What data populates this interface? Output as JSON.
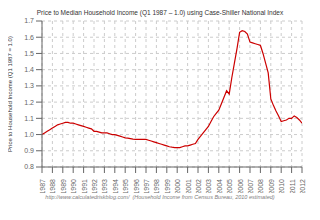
{
  "chart_data": {
    "type": "line",
    "title": "Price to Median Household Income (Q1 1987 – 1.0) using Case-Shiller National Index",
    "ylabel": "Price to Household Income (Q1 1987 = 1.0)",
    "annotations": [
      "http://www.calculatedriskblog.com/  (Household Income from Census Bureau, 2010 estimated)"
    ],
    "x": [
      1987.0,
      1987.25,
      1987.5,
      1987.75,
      1988.0,
      1988.25,
      1988.5,
      1988.75,
      1989.0,
      1989.25,
      1989.5,
      1989.75,
      1990.0,
      1990.25,
      1990.5,
      1990.75,
      1991.0,
      1991.25,
      1991.5,
      1991.75,
      1992.0,
      1992.25,
      1992.5,
      1992.75,
      1993.0,
      1993.25,
      1993.5,
      1993.75,
      1994.0,
      1994.25,
      1994.5,
      1994.75,
      1995.0,
      1995.25,
      1995.5,
      1995.75,
      1996.0,
      1996.25,
      1996.5,
      1996.75,
      1997.0,
      1997.25,
      1997.5,
      1997.75,
      1998.0,
      1998.25,
      1998.5,
      1998.75,
      1999.0,
      1999.25,
      1999.5,
      1999.75,
      2000.0,
      2000.25,
      2000.5,
      2000.75,
      2001.0,
      2001.25,
      2001.5,
      2001.75,
      2002.0,
      2002.25,
      2002.5,
      2002.75,
      2003.0,
      2003.25,
      2003.5,
      2003.75,
      2004.0,
      2004.25,
      2004.5,
      2004.75,
      2005.0,
      2005.25,
      2005.5,
      2005.75,
      2006.0,
      2006.25,
      2006.5,
      2006.75,
      2007.0,
      2007.25,
      2007.5,
      2007.75,
      2008.0,
      2008.25,
      2008.5,
      2008.75,
      2009.0,
      2009.25,
      2009.5,
      2009.75,
      2010.0,
      2010.25,
      2010.5,
      2010.75,
      2011.0,
      2011.25,
      2011.5,
      2011.75,
      2012.0
    ],
    "values": [
      1.0,
      1.01,
      1.02,
      1.03,
      1.04,
      1.05,
      1.06,
      1.065,
      1.07,
      1.075,
      1.075,
      1.07,
      1.07,
      1.065,
      1.06,
      1.055,
      1.05,
      1.045,
      1.04,
      1.035,
      1.02,
      1.02,
      1.015,
      1.01,
      1.01,
      1.01,
      1.005,
      1.0,
      1.0,
      0.995,
      0.99,
      0.985,
      0.98,
      0.978,
      0.975,
      0.972,
      0.97,
      0.97,
      0.97,
      0.97,
      0.97,
      0.965,
      0.96,
      0.955,
      0.95,
      0.945,
      0.94,
      0.935,
      0.93,
      0.925,
      0.922,
      0.92,
      0.92,
      0.92,
      0.925,
      0.93,
      0.93,
      0.935,
      0.94,
      0.945,
      0.97,
      0.99,
      1.01,
      1.03,
      1.05,
      1.08,
      1.11,
      1.13,
      1.15,
      1.19,
      1.23,
      1.27,
      1.25,
      1.35,
      1.44,
      1.53,
      1.63,
      1.64,
      1.635,
      1.62,
      1.57,
      1.565,
      1.56,
      1.555,
      1.55,
      1.5,
      1.44,
      1.38,
      1.22,
      1.18,
      1.145,
      1.115,
      1.08,
      1.085,
      1.09,
      1.1,
      1.1,
      1.115,
      1.105,
      1.09,
      1.07
    ],
    "color": "#cc0000",
    "xlim": [
      1987,
      2012
    ],
    "xticks": [
      1987,
      1988,
      1989,
      1990,
      1991,
      1992,
      1993,
      1994,
      1995,
      1996,
      1997,
      1998,
      1999,
      2000,
      2001,
      2002,
      2003,
      2004,
      2005,
      2006,
      2007,
      2008,
      2009,
      2010,
      2011,
      2012
    ],
    "ylim": [
      0.8,
      1.7
    ],
    "yticks": [
      0.8,
      0.9,
      {
        "value": 1.0,
        "label": "1.0"
      },
      1.1,
      1.2,
      1.3,
      1.4,
      1.5,
      1.6,
      1.7
    ],
    "grid": true
  }
}
